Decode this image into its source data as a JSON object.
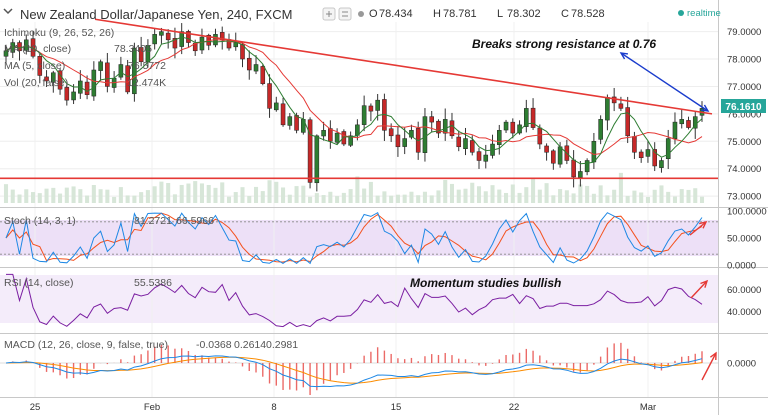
{
  "header": {
    "title": "New Zealand Dollar/Japanese Yen, 240, FXCM",
    "ohlc": [
      {
        "key": "O",
        "value": "78.434"
      },
      {
        "key": "H",
        "value": "78.781"
      },
      {
        "key": "L",
        "value": "78.302"
      },
      {
        "key": "C",
        "value": "78.528"
      }
    ],
    "realtime_label": "realtime",
    "realtime_color": "#26a69a"
  },
  "indicators": {
    "ichimoku": {
      "label": "Ichimoku (9, 26, 52, 26)"
    },
    "ma10": {
      "label": "MA (10, close)",
      "value": "78.3405",
      "color": "#e53935"
    },
    "ma5": {
      "label": "MA (5, close)",
      "value": "76.5772",
      "color": "#2e7d32"
    },
    "vol": {
      "label": "Vol (20, false)",
      "value": "12.474K",
      "color": "#2e7d32"
    },
    "stoch": {
      "label": "Stoch (14, 3, 1)",
      "k": "81.2721",
      "d": "66.5966",
      "k_color": "#1e88e5",
      "d_color": "#f4511e"
    },
    "rsi": {
      "label": "RSI (14, close)",
      "value": "55.5386",
      "color": "#7b1fa2"
    },
    "macd": {
      "label": "MACD (12, 26, close, 9, false, true)",
      "hist": "-0.0368",
      "macd": "0.2614",
      "signal": "0.2981",
      "hist_color": "#e53935",
      "macd_color": "#1e88e5",
      "signal_color": "#fb8c00"
    }
  },
  "annotations": {
    "resistance": "Breaks strong resistance at 0.76",
    "momentum": "Momentum studies bullish"
  },
  "price_label": "76.1610",
  "chart_data": {
    "type": "candlestick",
    "x_tick_labels": [
      "25",
      "Feb",
      "8",
      "15",
      "22",
      "Mar"
    ],
    "price_axis": {
      "ticks": [
        "79.0000",
        "78.0000",
        "77.0000",
        "76.0000",
        "75.0000",
        "74.0000",
        "73.0000"
      ],
      "range": [
        72.75,
        79.35
      ]
    },
    "stoch_axis": {
      "ticks": [
        "100.0000",
        "50.0000",
        "0.0000"
      ],
      "bands": [
        80,
        20
      ]
    },
    "rsi_axis": {
      "ticks": [
        "60.0000",
        "40.0000"
      ],
      "bands": [
        70,
        30
      ]
    },
    "macd_axis": {
      "ticks": [
        "0.0000"
      ]
    },
    "current_price": 76.161,
    "support_level": 73.65,
    "resistance_line": {
      "start_price": 79.45,
      "end_price": 76.0
    },
    "close_path": [
      78.3,
      78.6,
      78.3,
      78.7,
      78.1,
      77.4,
      77.2,
      77.5,
      76.9,
      76.5,
      76.8,
      77.2,
      76.7,
      77.6,
      77.9,
      77.0,
      77.3,
      77.8,
      76.8,
      78.4,
      77.9,
      78.5,
      78.9,
      79.0,
      78.7,
      78.4,
      79.0,
      78.6,
      78.3,
      78.8,
      78.5,
      78.9,
      78.7,
      78.4,
      78.6,
      78.0,
      77.6,
      77.8,
      77.1,
      76.2,
      76.4,
      75.6,
      75.9,
      75.4,
      75.8,
      73.5,
      75.2,
      75.4,
      75.0,
      75.3,
      74.9,
      75.2,
      75.6,
      76.3,
      76.1,
      76.5,
      75.4,
      75.2,
      74.8,
      75.1,
      75.4,
      74.6,
      75.9,
      75.7,
      75.3,
      75.8,
      75.2,
      74.8,
      75.1,
      74.6,
      74.3,
      74.5,
      74.9,
      75.4,
      75.7,
      75.3,
      75.6,
      76.2,
      75.5,
      74.9,
      74.6,
      74.2,
      74.8,
      74.3,
      73.7,
      73.9,
      74.3,
      75.0,
      75.8,
      76.6,
      76.4,
      76.2,
      75.2,
      74.6,
      74.4,
      74.7,
      74.1,
      74.3,
      75.1,
      75.7,
      75.8,
      75.5,
      75.9,
      76.2
    ],
    "annotation_arrows": [
      {
        "name": "resistance-break-arrow",
        "color": "#1a3ccc"
      },
      {
        "name": "stoch-up-arrow",
        "color": "#e53935"
      },
      {
        "name": "rsi-up-arrow",
        "color": "#e53935"
      },
      {
        "name": "macd-up-arrow",
        "color": "#e53935"
      }
    ]
  }
}
